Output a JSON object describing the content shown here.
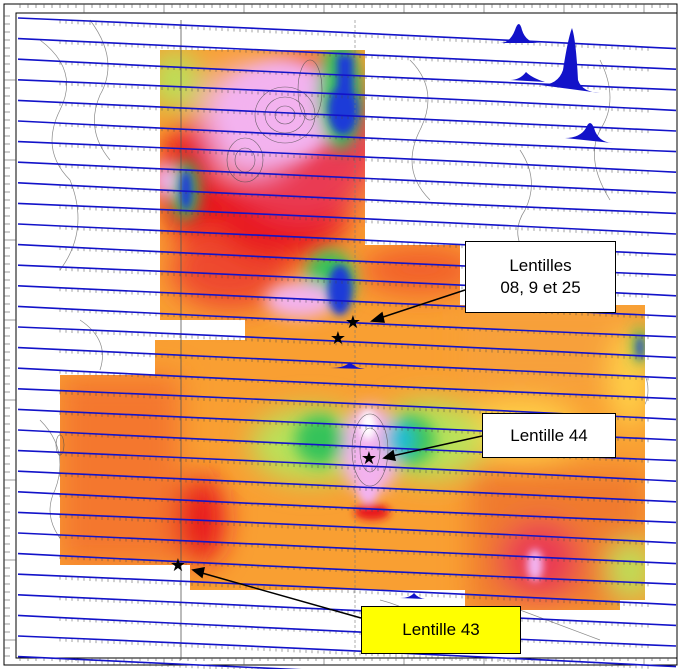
{
  "map": {
    "frame": {
      "border_color": "#000000"
    },
    "anomaly_colors": [
      "#e8191e",
      "#f2602c",
      "#f99f32",
      "#ffd24a",
      "#b9e25a",
      "#35c35a",
      "#1a3ad8",
      "#f3b2ef"
    ],
    "profile_color": "#1212c9",
    "markers": [
      {
        "name": "star-marker-1",
        "symbol": "★"
      },
      {
        "name": "star-marker-2",
        "symbol": "★"
      },
      {
        "name": "star-marker-3",
        "symbol": "★"
      },
      {
        "name": "star-marker-4",
        "symbol": "★"
      }
    ]
  },
  "callouts": {
    "lentilles_08_9_25": {
      "label": "Lentilles\n08, 9 et 25",
      "background": "#ffffff"
    },
    "lentille_44": {
      "label": "Lentille 44",
      "background": "#ffffff"
    },
    "lentille_43": {
      "label": "Lentille 43",
      "background": "#ffff00"
    }
  }
}
